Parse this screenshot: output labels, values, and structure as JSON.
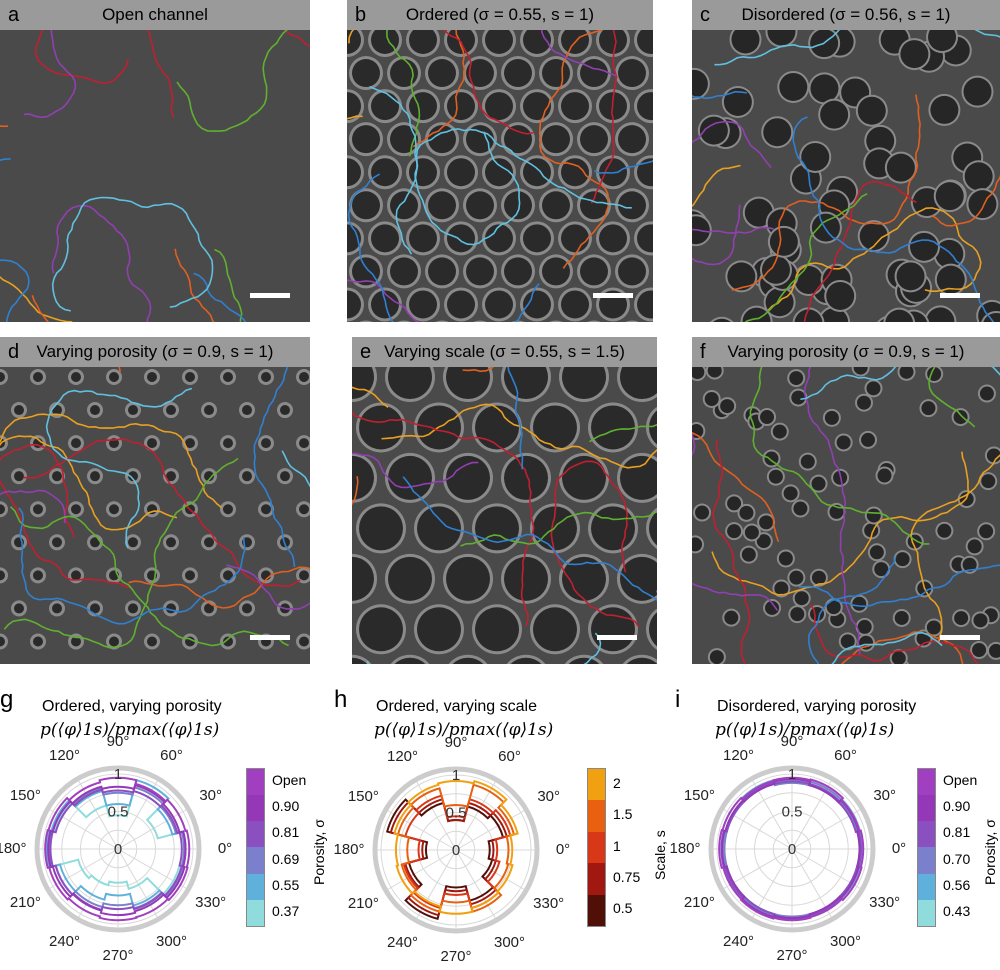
{
  "panels": [
    {
      "letter": "a",
      "title": "Open channel",
      "pattern": "none"
    },
    {
      "letter": "b",
      "title": "Ordered (σ = 0.55, s = 1)",
      "pattern": "ordered-large"
    },
    {
      "letter": "c",
      "title": "Disordered (σ = 0.56, s = 1)",
      "pattern": "disordered"
    },
    {
      "letter": "d",
      "title": "Varying porosity (σ = 0.9, s = 1)",
      "pattern": "ordered-small"
    },
    {
      "letter": "e",
      "title": "Varying scale (σ = 0.55, s = 1.5)",
      "pattern": "ordered-xlarge"
    },
    {
      "letter": "f",
      "title": "Varying porosity (σ = 0.9, s = 1)",
      "pattern": "disordered-small"
    }
  ],
  "trajectory_colors": [
    "#e8a020",
    "#e06020",
    "#c02030",
    "#9040b0",
    "#60b030",
    "#3080d0",
    "#60c0e0"
  ],
  "chart_data": [
    {
      "type": "polar-histogram",
      "letter": "g",
      "title": "Ordered, varying porosity",
      "ylabel": "p(⟨φ⟩1s)/pmax(⟨φ⟩1s)",
      "radial_ticks": [
        "0",
        "0.5",
        "1"
      ],
      "angle_ticks": [
        "0°",
        "30°",
        "60°",
        "90°",
        "120°",
        "150°",
        "180°",
        "210°",
        "240°",
        "270°",
        "300°",
        "330°"
      ],
      "bin_deg": 30,
      "colorbar": {
        "title": "Porosity, σ",
        "labels": [
          "Open",
          "0.90",
          "0.81",
          "0.69",
          "0.55",
          "0.37"
        ],
        "colors": [
          "#a040c0",
          "#9438b8",
          "#8a50c0",
          "#7a80cc",
          "#60b0dc",
          "#90dcdc"
        ]
      },
      "series": [
        {
          "name": "Open",
          "color": "#a040c0",
          "values": [
            0.95,
            0.93,
            0.9,
            0.95,
            0.92,
            0.96,
            0.97,
            0.95,
            0.93,
            0.95,
            0.94,
            0.96
          ]
        },
        {
          "name": "0.90",
          "color": "#9438b8",
          "values": [
            0.9,
            0.85,
            0.88,
            0.83,
            0.86,
            0.9,
            0.93,
            0.9,
            0.85,
            0.88,
            0.86,
            0.92
          ]
        },
        {
          "name": "0.81",
          "color": "#8a50c0",
          "values": [
            0.85,
            0.82,
            0.8,
            0.78,
            0.82,
            0.86,
            0.9,
            0.86,
            0.84,
            0.8,
            0.83,
            0.88
          ]
        },
        {
          "name": "0.69",
          "color": "#7a80cc",
          "values": [
            0.88,
            0.8,
            0.85,
            0.75,
            0.84,
            0.9,
            0.92,
            0.86,
            0.8,
            0.75,
            0.82,
            0.9
          ]
        },
        {
          "name": "0.55",
          "color": "#60b0dc",
          "values": [
            0.9,
            0.75,
            0.95,
            0.6,
            0.8,
            0.92,
            0.95,
            0.8,
            0.7,
            0.62,
            0.78,
            0.9
          ]
        },
        {
          "name": "0.37",
          "color": "#90dcdc",
          "values": [
            0.9,
            0.55,
            0.95,
            0.45,
            0.6,
            0.88,
            0.92,
            0.55,
            0.5,
            0.45,
            0.55,
            0.85
          ]
        }
      ]
    },
    {
      "type": "polar-histogram",
      "letter": "h",
      "title": "Ordered, varying scale",
      "ylabel": "p(⟨φ⟩1s)/pmax(⟨φ⟩1s)",
      "radial_ticks": [
        "0",
        "0.5",
        "1"
      ],
      "angle_ticks": [
        "0°",
        "30°",
        "60°",
        "90°",
        "120°",
        "150°",
        "180°",
        "210°",
        "240°",
        "270°",
        "300°",
        "330°"
      ],
      "bin_deg": 30,
      "colorbar": {
        "title": "Scale, s",
        "labels": [
          "2",
          "1.5",
          "1",
          "0.75",
          "0.5"
        ],
        "colors": [
          "#f0a010",
          "#e86010",
          "#d83818",
          "#a01810",
          "#501008"
        ]
      },
      "series": [
        {
          "name": "2",
          "color": "#f0a010",
          "values": [
            0.75,
            0.85,
            0.95,
            0.92,
            0.9,
            0.85,
            0.8,
            0.82,
            0.78,
            0.85,
            0.8,
            0.78
          ]
        },
        {
          "name": "1.5",
          "color": "#e86010",
          "values": [
            0.7,
            0.8,
            0.9,
            0.6,
            0.85,
            0.8,
            0.65,
            0.75,
            0.85,
            0.7,
            0.85,
            0.72
          ]
        },
        {
          "name": "1",
          "color": "#d83818",
          "values": [
            0.55,
            0.75,
            0.7,
            0.45,
            0.75,
            0.7,
            0.5,
            0.72,
            0.8,
            0.6,
            0.8,
            0.6
          ]
        },
        {
          "name": "0.75",
          "color": "#a01810",
          "values": [
            0.5,
            0.7,
            0.65,
            0.4,
            0.7,
            0.9,
            0.45,
            0.7,
            0.9,
            0.55,
            0.75,
            0.55
          ]
        },
        {
          "name": "0.5",
          "color": "#501008",
          "values": [
            0.45,
            0.65,
            0.6,
            0.4,
            0.65,
            0.95,
            0.4,
            0.65,
            0.95,
            0.5,
            0.7,
            0.5
          ]
        }
      ]
    },
    {
      "type": "polar-histogram",
      "letter": "i",
      "title": "Disordered, varying porosity",
      "ylabel": "p(⟨φ⟩1s)/pmax(⟨φ⟩1s)",
      "radial_ticks": [
        "0",
        "0.5",
        "1"
      ],
      "angle_ticks": [
        "0°",
        "30°",
        "60°",
        "90°",
        "120°",
        "150°",
        "180°",
        "210°",
        "240°",
        "270°",
        "300°",
        "330°"
      ],
      "bin_deg": 30,
      "colorbar": {
        "title": "Porosity, σ",
        "labels": [
          "Open",
          "0.90",
          "0.81",
          "0.70",
          "0.56",
          "0.43"
        ],
        "colors": [
          "#a040c0",
          "#9438b8",
          "#8a50c0",
          "#7a80cc",
          "#60b0dc",
          "#90dcdc"
        ]
      },
      "series": [
        {
          "name": "Open",
          "color": "#a040c0",
          "values": [
            0.95,
            0.93,
            0.96,
            0.95,
            0.94,
            0.96,
            0.97,
            0.95,
            0.96,
            0.95,
            0.94,
            0.96
          ]
        },
        {
          "name": "0.90",
          "color": "#9438b8",
          "values": [
            0.9,
            0.92,
            0.88,
            0.93,
            0.9,
            0.92,
            0.93,
            0.9,
            0.94,
            0.92,
            0.9,
            0.92
          ]
        },
        {
          "name": "0.81",
          "color": "#8a50c0",
          "values": [
            0.92,
            0.88,
            0.9,
            0.9,
            0.92,
            0.9,
            0.94,
            0.92,
            0.9,
            0.93,
            0.92,
            0.9
          ]
        },
        {
          "name": "0.70",
          "color": "#7a80cc",
          "values": [
            0.9,
            0.9,
            0.93,
            0.88,
            0.9,
            0.92,
            0.9,
            0.93,
            0.92,
            0.9,
            0.9,
            0.93
          ]
        },
        {
          "name": "0.56",
          "color": "#60b0dc",
          "values": [
            0.93,
            0.9,
            0.88,
            0.92,
            0.95,
            0.9,
            0.92,
            0.94,
            0.9,
            0.92,
            0.93,
            0.9
          ]
        },
        {
          "name": "0.43",
          "color": "#90dcdc",
          "values": [
            0.92,
            0.94,
            0.9,
            0.9,
            0.93,
            0.96,
            0.94,
            0.9,
            0.92,
            0.94,
            0.92,
            0.95
          ]
        }
      ]
    }
  ]
}
